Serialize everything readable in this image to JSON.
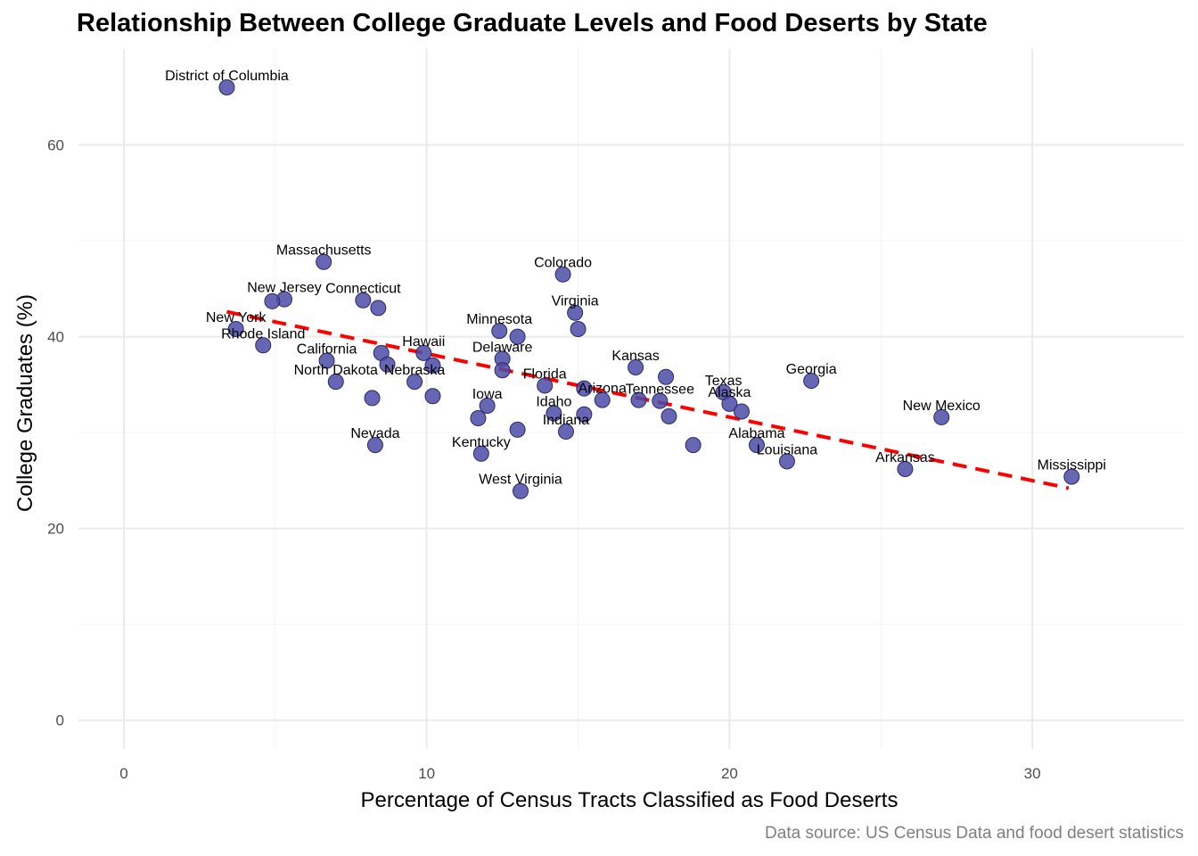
{
  "chart_data": {
    "type": "scatter",
    "title": "Relationship Between College Graduate Levels and Food Deserts by State",
    "caption": "Data source: US Census Data and food desert statistics",
    "xlabel": "Percentage of Census Tracts Classified as Food Deserts",
    "ylabel": "College Graduates (%)",
    "xlim": [
      -1.5,
      35
    ],
    "ylim": [
      -3,
      70
    ],
    "xticks": [
      0,
      10,
      20,
      30
    ],
    "yticks": [
      0,
      20,
      40,
      60
    ],
    "grid": true,
    "point_color": "#4b4ba8",
    "trend_color": "#ff0000",
    "trendline": {
      "x": [
        3.4,
        31.2
      ],
      "y": [
        42.6,
        24.2
      ],
      "style": "dashed"
    },
    "points": [
      {
        "label": "District of Columbia",
        "x": 3.4,
        "y": 66.0
      },
      {
        "label": "Massachusetts",
        "x": 6.6,
        "y": 47.8
      },
      {
        "label": "Colorado",
        "x": 14.5,
        "y": 46.5
      },
      {
        "label": "New Jersey",
        "x": 5.3,
        "y": 43.9
      },
      {
        "label": "",
        "x": 4.9,
        "y": 43.7
      },
      {
        "label": "Connecticut",
        "x": 7.9,
        "y": 43.8
      },
      {
        "label": "",
        "x": 8.4,
        "y": 43.0
      },
      {
        "label": "Virginia",
        "x": 14.9,
        "y": 42.5
      },
      {
        "label": "New York",
        "x": 3.7,
        "y": 40.8
      },
      {
        "label": "Minnesota",
        "x": 12.4,
        "y": 40.6
      },
      {
        "label": "",
        "x": 13.0,
        "y": 40.0
      },
      {
        "label": "",
        "x": 15.0,
        "y": 40.8
      },
      {
        "label": "Rhode Island",
        "x": 4.6,
        "y": 39.1
      },
      {
        "label": "California",
        "x": 6.7,
        "y": 37.5
      },
      {
        "label": "",
        "x": 8.5,
        "y": 38.3
      },
      {
        "label": "",
        "x": 8.7,
        "y": 37.1
      },
      {
        "label": "Hawaii",
        "x": 9.9,
        "y": 38.3
      },
      {
        "label": "",
        "x": 10.2,
        "y": 37.0
      },
      {
        "label": "Delaware",
        "x": 12.5,
        "y": 37.7
      },
      {
        "label": "",
        "x": 12.5,
        "y": 36.5
      },
      {
        "label": "Nebraska",
        "x": 9.6,
        "y": 35.3
      },
      {
        "label": "North Dakota",
        "x": 7.0,
        "y": 35.3
      },
      {
        "label": "Florida",
        "x": 13.9,
        "y": 34.9
      },
      {
        "label": "",
        "x": 15.2,
        "y": 34.6
      },
      {
        "label": "Kansas",
        "x": 16.9,
        "y": 36.8
      },
      {
        "label": "",
        "x": 17.9,
        "y": 35.8
      },
      {
        "label": "Georgia",
        "x": 22.7,
        "y": 35.4
      },
      {
        "label": "Texas",
        "x": 19.8,
        "y": 34.2
      },
      {
        "label": "",
        "x": 8.2,
        "y": 33.6
      },
      {
        "label": "",
        "x": 10.2,
        "y": 33.8
      },
      {
        "label": "Arizona",
        "x": 15.8,
        "y": 33.4
      },
      {
        "label": "",
        "x": 17.0,
        "y": 33.4
      },
      {
        "label": "Tennessee",
        "x": 17.7,
        "y": 33.3
      },
      {
        "label": "Alaska",
        "x": 20.0,
        "y": 33.0
      },
      {
        "label": "",
        "x": 20.4,
        "y": 32.2
      },
      {
        "label": "Iowa",
        "x": 12.0,
        "y": 32.8
      },
      {
        "label": "Idaho",
        "x": 14.2,
        "y": 32.0
      },
      {
        "label": "",
        "x": 15.2,
        "y": 31.9
      },
      {
        "label": "",
        "x": 11.7,
        "y": 31.5
      },
      {
        "label": "",
        "x": 18.0,
        "y": 31.7
      },
      {
        "label": "New Mexico",
        "x": 27.0,
        "y": 31.6
      },
      {
        "label": "Indiana",
        "x": 14.6,
        "y": 30.1
      },
      {
        "label": "",
        "x": 13.0,
        "y": 30.3
      },
      {
        "label": "Nevada",
        "x": 8.3,
        "y": 28.7
      },
      {
        "label": "",
        "x": 18.8,
        "y": 28.7
      },
      {
        "label": "Alabama",
        "x": 20.9,
        "y": 28.7
      },
      {
        "label": "Kentucky",
        "x": 11.8,
        "y": 27.8
      },
      {
        "label": "Louisiana",
        "x": 21.9,
        "y": 27.0
      },
      {
        "label": "Arkansas",
        "x": 25.8,
        "y": 26.2
      },
      {
        "label": "Mississippi",
        "x": 31.3,
        "y": 25.4
      },
      {
        "label": "West Virginia",
        "x": 13.1,
        "y": 23.9
      }
    ]
  }
}
